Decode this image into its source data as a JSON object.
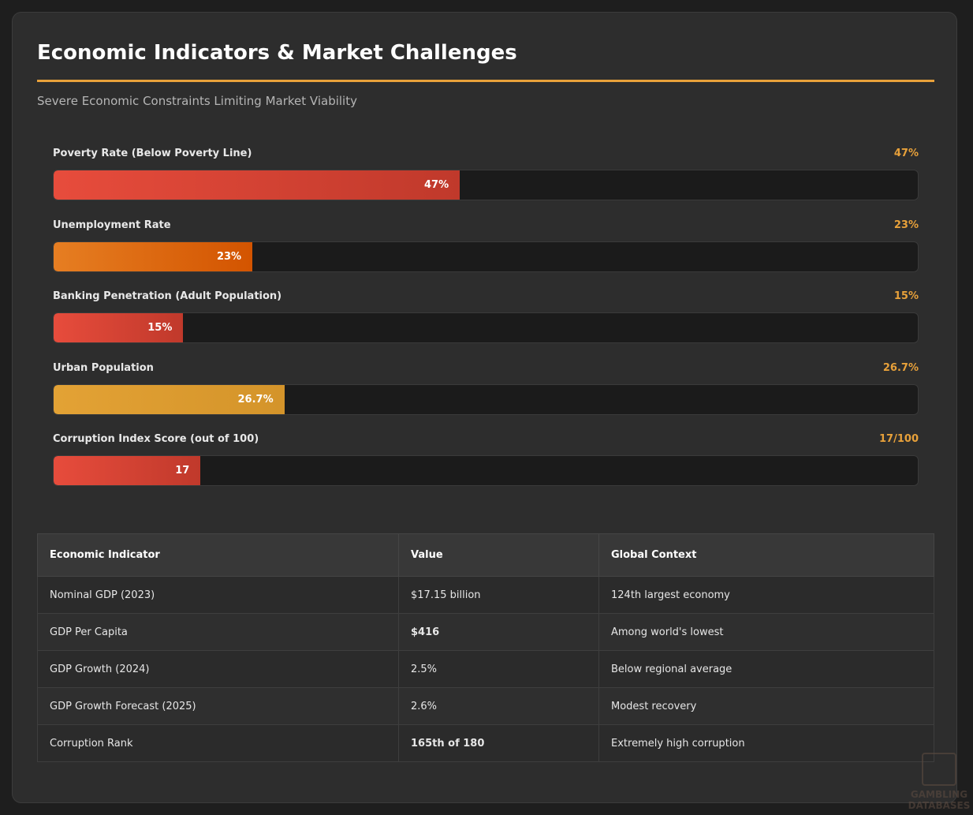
{
  "header": {
    "title": "Economic Indicators & Market Challenges",
    "subtitle": "Severe Economic Constraints Limiting Market Viability"
  },
  "xlim": [
    0,
    100
  ],
  "bars": [
    {
      "label": "Poverty Rate (Below Poverty Line)",
      "value": 47,
      "value_label": "47%",
      "bar_label": "47%",
      "colors": [
        "#e74c3c",
        "#c0392b"
      ]
    },
    {
      "label": "Unemployment Rate",
      "value": 23,
      "value_label": "23%",
      "bar_label": "23%",
      "colors": [
        "#e67e22",
        "#d35400"
      ]
    },
    {
      "label": "Banking Penetration (Adult Population)",
      "value": 15,
      "value_label": "15%",
      "bar_label": "15%",
      "colors": [
        "#e74c3c",
        "#c0392b"
      ]
    },
    {
      "label": "Urban Population",
      "value": 26.7,
      "value_label": "26.7%",
      "bar_label": "26.7%",
      "colors": [
        "#e3a235",
        "#d4942a"
      ]
    },
    {
      "label": "Corruption Index Score (out of 100)",
      "value": 17,
      "value_label": "17/100",
      "bar_label": "17",
      "colors": [
        "#e74c3c",
        "#c0392b"
      ]
    }
  ],
  "table": {
    "header": [
      "Economic Indicator",
      "Value",
      "Global Context"
    ],
    "rows": [
      [
        "Nominal GDP (2023)",
        "$17.15 billion",
        "124th largest economy"
      ],
      [
        "GDP Per Capita",
        "$416",
        "Among world's lowest"
      ],
      [
        "GDP Growth (2024)",
        "2.5%",
        "Below regional average"
      ],
      [
        "GDP Growth Forecast (2025)",
        "2.6%",
        "Modest recovery"
      ],
      [
        "Corruption Rank",
        "165th of 180",
        "Extremely high corruption"
      ]
    ]
  },
  "watermark": [
    "GAMBLING",
    "DATABASES"
  ]
}
